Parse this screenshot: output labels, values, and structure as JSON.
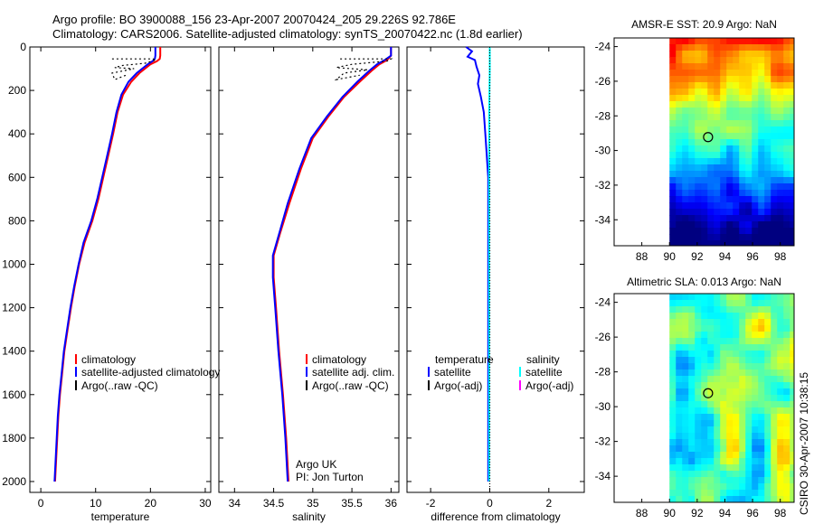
{
  "header": {
    "line1": "Argo profile: BO 3900088_156 23-Apr-2007 20070424_205 29.226S 92.786E",
    "line2": "Climatology: CARS2006. Satellite-adjusted climatology: synTS_20070422.nc (1.8d earlier)"
  },
  "side_label": "CSIRO 30-Apr-2007 10:38:15",
  "colors": {
    "climatology": "#ff0000",
    "satellite": "#0000ff",
    "argo": "#000000",
    "salinity_satellite": "#00ffff",
    "salinity_argo": "#ff00ff"
  },
  "chart_data": [
    {
      "type": "line",
      "name": "temperature-profile",
      "xlabel": "temperature",
      "xlim": [
        -2,
        31
      ],
      "xticks": [
        0,
        10,
        20,
        30
      ],
      "ylim": [
        0,
        2050
      ],
      "yticks": [
        0,
        200,
        400,
        600,
        800,
        1000,
        1200,
        1400,
        1600,
        1800,
        2000
      ],
      "y_inverted": true,
      "legend": [
        "climatology",
        "satellite-adjusted climatology",
        "Argo(..raw -QC)"
      ],
      "series": [
        {
          "name": "climatology",
          "color": "#ff0000",
          "points": [
            [
              21.8,
              0
            ],
            [
              21.8,
              40
            ],
            [
              21.7,
              55
            ],
            [
              21.2,
              65
            ],
            [
              20.0,
              80
            ],
            [
              19.0,
              100
            ],
            [
              18.0,
              120
            ],
            [
              16.5,
              160
            ],
            [
              15.0,
              220
            ],
            [
              14.0,
              300
            ],
            [
              13.2,
              400
            ],
            [
              12.3,
              500
            ],
            [
              11.4,
              600
            ],
            [
              10.5,
              700
            ],
            [
              9.4,
              800
            ],
            [
              8.0,
              900
            ],
            [
              7.0,
              1000
            ],
            [
              6.2,
              1100
            ],
            [
              5.5,
              1200
            ],
            [
              4.9,
              1300
            ],
            [
              4.3,
              1400
            ],
            [
              3.9,
              1500
            ],
            [
              3.5,
              1600
            ],
            [
              3.2,
              1700
            ],
            [
              3.0,
              1800
            ],
            [
              2.8,
              1900
            ],
            [
              2.6,
              2000
            ]
          ]
        },
        {
          "name": "satellite-adjusted climatology",
          "color": "#0000ff",
          "points": [
            [
              20.9,
              0
            ],
            [
              20.9,
              40
            ],
            [
              20.8,
              55
            ],
            [
              20.4,
              65
            ],
            [
              19.5,
              80
            ],
            [
              18.5,
              100
            ],
            [
              17.5,
              120
            ],
            [
              16.0,
              160
            ],
            [
              14.7,
              220
            ],
            [
              13.8,
              300
            ],
            [
              13.0,
              400
            ],
            [
              12.1,
              500
            ],
            [
              11.2,
              600
            ],
            [
              10.3,
              700
            ],
            [
              9.2,
              800
            ],
            [
              7.8,
              900
            ],
            [
              6.9,
              1000
            ],
            [
              6.1,
              1100
            ],
            [
              5.4,
              1200
            ],
            [
              4.8,
              1300
            ],
            [
              4.2,
              1400
            ],
            [
              3.8,
              1500
            ],
            [
              3.4,
              1600
            ],
            [
              3.1,
              1700
            ],
            [
              2.9,
              1800
            ],
            [
              2.7,
              1900
            ],
            [
              2.5,
              2000
            ]
          ]
        },
        {
          "name": "Argo raw",
          "color": "#000000",
          "dash": "2,3",
          "points": [
            [
              13,
              55
            ],
            [
              20.5,
              55
            ],
            [
              21,
              60
            ],
            [
              19,
              75
            ],
            [
              15,
              85
            ],
            [
              13.5,
              95
            ],
            [
              17,
              100
            ],
            [
              15,
              110
            ],
            [
              13,
              120
            ],
            [
              13.5,
              150
            ],
            [
              15.5,
              130
            ]
          ]
        }
      ]
    },
    {
      "type": "line",
      "name": "salinity-profile",
      "xlabel": "salinity",
      "xlim": [
        33.8,
        36.1
      ],
      "xticks": [
        34,
        34.5,
        35,
        35.5,
        36
      ],
      "ylim": [
        0,
        2050
      ],
      "y_inverted": true,
      "legend": [
        "climatology",
        "satellite adj. clim.",
        "Argo(..raw -QC)"
      ],
      "annotation": [
        "Argo UK",
        "PI: Jon Turton"
      ],
      "series": [
        {
          "name": "climatology",
          "color": "#ff0000",
          "points": [
            [
              36.0,
              0
            ],
            [
              36.0,
              40
            ],
            [
              35.95,
              60
            ],
            [
              35.85,
              80
            ],
            [
              35.75,
              110
            ],
            [
              35.6,
              160
            ],
            [
              35.4,
              230
            ],
            [
              35.2,
              320
            ],
            [
              35.0,
              420
            ],
            [
              34.85,
              560
            ],
            [
              34.7,
              720
            ],
            [
              34.58,
              860
            ],
            [
              34.5,
              960
            ],
            [
              34.5,
              1060
            ],
            [
              34.53,
              1200
            ],
            [
              34.57,
              1400
            ],
            [
              34.62,
              1600
            ],
            [
              34.66,
              1800
            ],
            [
              34.69,
              2000
            ]
          ]
        },
        {
          "name": "satellite adj. clim.",
          "color": "#0000ff",
          "points": [
            [
              36.0,
              0
            ],
            [
              36.0,
              40
            ],
            [
              35.92,
              60
            ],
            [
              35.82,
              80
            ],
            [
              35.72,
              110
            ],
            [
              35.57,
              160
            ],
            [
              35.38,
              230
            ],
            [
              35.18,
              320
            ],
            [
              34.98,
              420
            ],
            [
              34.83,
              560
            ],
            [
              34.68,
              720
            ],
            [
              34.57,
              860
            ],
            [
              34.49,
              960
            ],
            [
              34.49,
              1060
            ],
            [
              34.52,
              1200
            ],
            [
              34.56,
              1400
            ],
            [
              34.61,
              1600
            ],
            [
              34.65,
              1800
            ],
            [
              34.68,
              2000
            ]
          ]
        },
        {
          "name": "Argo raw",
          "color": "#000000",
          "dash": "2,3",
          "points": [
            [
              35.35,
              55
            ],
            [
              36.0,
              55
            ],
            [
              35.95,
              65
            ],
            [
              35.5,
              80
            ],
            [
              35.3,
              95
            ],
            [
              35.7,
              105
            ],
            [
              35.4,
              120
            ],
            [
              35.3,
              150
            ],
            [
              35.6,
              130
            ]
          ]
        }
      ]
    },
    {
      "type": "line",
      "name": "difference-profile",
      "xlabel": "difference from climatology",
      "xlim": [
        -2.8,
        3.2
      ],
      "xticks": [
        -2,
        0,
        2
      ],
      "ylim": [
        0,
        2050
      ],
      "y_inverted": true,
      "legend_left": [
        "temperature",
        "satellite",
        "Argo(-adj)"
      ],
      "legend_right": [
        "salinity",
        "satellite",
        "Argo(-adj)"
      ],
      "series": [
        {
          "name": "temperature satellite",
          "color": "#0000ff",
          "points": [
            [
              -0.8,
              0
            ],
            [
              -0.6,
              20
            ],
            [
              -0.75,
              45
            ],
            [
              -0.5,
              60
            ],
            [
              -0.45,
              90
            ],
            [
              -0.35,
              130
            ],
            [
              -0.4,
              170
            ],
            [
              -0.3,
              230
            ],
            [
              -0.2,
              300
            ],
            [
              -0.15,
              400
            ],
            [
              -0.1,
              500
            ],
            [
              -0.05,
              600
            ],
            [
              -0.05,
              800
            ],
            [
              -0.05,
              1050
            ],
            [
              -0.05,
              1500
            ],
            [
              -0.05,
              2000
            ]
          ]
        },
        {
          "name": "salinity satellite",
          "color": "#00ffff",
          "points": [
            [
              0.0,
              0
            ],
            [
              0.0,
              100
            ],
            [
              -0.02,
              300
            ],
            [
              -0.02,
              600
            ],
            [
              -0.02,
              1000
            ],
            [
              -0.02,
              1500
            ],
            [
              -0.02,
              2000
            ]
          ]
        },
        {
          "name": "zero",
          "color": "#000000",
          "dash": "1,2",
          "points": [
            [
              0,
              0
            ],
            [
              0,
              2050
            ]
          ]
        }
      ]
    },
    {
      "type": "heatmap",
      "name": "sst-map",
      "title": "AMSR-E SST: 20.9 Argo: NaN",
      "xlim": [
        86,
        99
      ],
      "ylim": [
        -35.5,
        -23.5
      ],
      "xticks": [
        88,
        90,
        92,
        94,
        96,
        98
      ],
      "yticks": [
        -24,
        -26,
        -28,
        -30,
        -32,
        -34
      ],
      "data_start_x": 90,
      "marker": {
        "lon": 92.786,
        "lat": -29.226
      }
    },
    {
      "type": "heatmap",
      "name": "sla-map",
      "title": "Altimetric SLA: 0.013 Argo: NaN",
      "xlim": [
        86,
        99
      ],
      "ylim": [
        -35.5,
        -23.5
      ],
      "xticks": [
        88,
        90,
        92,
        94,
        96,
        98
      ],
      "yticks": [
        -24,
        -26,
        -28,
        -30,
        -32,
        -34
      ],
      "data_start_x": 90,
      "marker": {
        "lon": 92.786,
        "lat": -29.226
      }
    }
  ]
}
